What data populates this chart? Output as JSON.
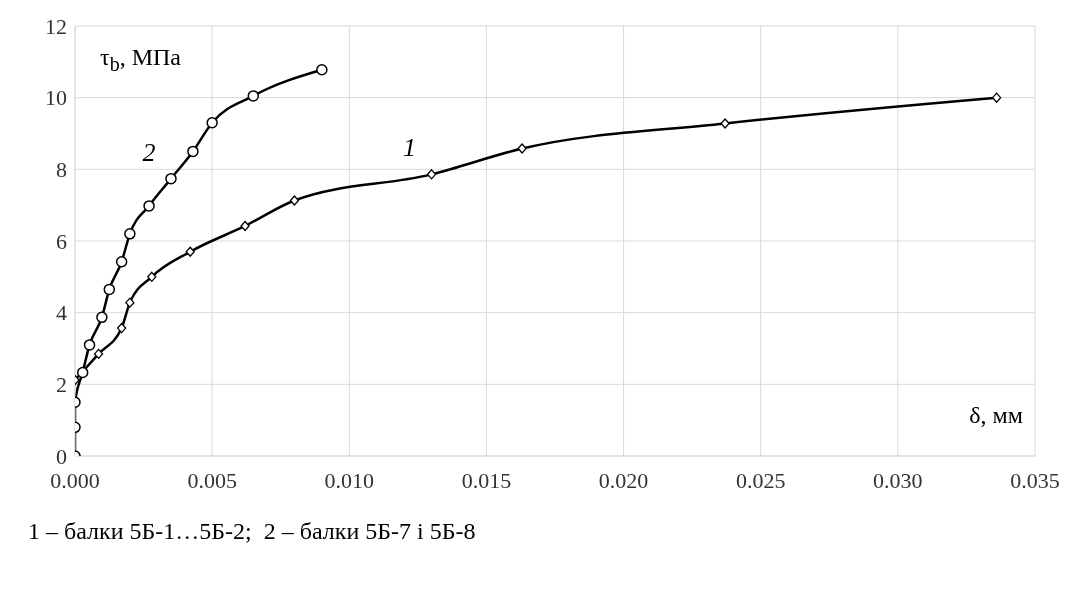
{
  "chart_data": {
    "type": "line",
    "xlabel": "δ, мм",
    "ylabel": "τ$_{b}$, МПа",
    "annotations": [
      "1 – балки 5Б-1…5Б-2;  2 – балки 5Б-7 і 5Б-8"
    ],
    "series": [
      {
        "name": "1",
        "color": "#000000",
        "marker": "diamond",
        "x": [
          0,
          0.00086,
          0.0017,
          0.002,
          0.0028,
          0.0042,
          0.0062,
          0.008,
          0.013,
          0.0163,
          0.0237,
          0.0336
        ],
        "values": [
          2.12,
          2.85,
          3.57,
          4.28,
          5.0,
          5.7,
          6.42,
          7.13,
          7.86,
          8.58,
          9.28,
          10.0
        ]
      },
      {
        "name": "2",
        "color": "#000000",
        "marker": "circle",
        "x": [
          0,
          0,
          0,
          0.00028,
          0.00053,
          0.00098,
          0.00125,
          0.0017,
          0.002,
          0.0027,
          0.0035,
          0.0043,
          0.005,
          0.0065,
          0.009
        ],
        "values": [
          0,
          0.8,
          1.5,
          2.33,
          3.1,
          3.87,
          4.65,
          5.42,
          6.2,
          6.98,
          7.74,
          8.5,
          9.3,
          10.05,
          10.78
        ]
      }
    ],
    "xlim": [
      0,
      0.035
    ],
    "xticks": [
      {
        "value": 0,
        "label": "0.000"
      },
      {
        "value": 0.005,
        "label": "0.005"
      },
      {
        "value": 0.01,
        "label": "0.010"
      },
      {
        "value": 0.015,
        "label": "0.015"
      },
      {
        "value": 0.02,
        "label": "0.020"
      },
      {
        "value": 0.025,
        "label": "0.025"
      },
      {
        "value": 0.03,
        "label": "0.030"
      },
      {
        "value": 0.035,
        "label": "0.035"
      }
    ],
    "ylim": [
      0,
      12
    ],
    "yticks": [
      0,
      2,
      4,
      6,
      8,
      10,
      12
    ],
    "grid": true,
    "legend": false,
    "line_style": "solid"
  }
}
